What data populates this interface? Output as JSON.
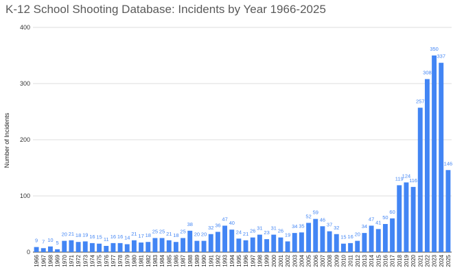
{
  "chart_data": {
    "type": "bar",
    "title": "K-12 School Shooting Database: Incidents by Year 1966-2025",
    "xlabel": "",
    "ylabel": "Number of Incidents",
    "ylim": [
      0,
      400
    ],
    "yticks": [
      0,
      100,
      200,
      300,
      400
    ],
    "grid": true,
    "legend": "none",
    "bar_color": "#4285f4",
    "label_color": "#4285f4",
    "categories": [
      "1966",
      "1967",
      "1968",
      "1969",
      "1970",
      "1971",
      "1972",
      "1973",
      "1974",
      "1975",
      "1976",
      "1977",
      "1978",
      "1979",
      "1980",
      "1981",
      "1982",
      "1983",
      "1984",
      "1985",
      "1986",
      "1987",
      "1988",
      "1989",
      "1990",
      "1991",
      "1992",
      "1993",
      "1994",
      "1995",
      "1996",
      "1997",
      "1998",
      "1999",
      "2000",
      "2001",
      "2002",
      "2003",
      "2004",
      "2005",
      "2006",
      "2007",
      "2008",
      "2009",
      "2010",
      "2011",
      "2012",
      "2013",
      "2014",
      "2015",
      "2016",
      "2017",
      "2018",
      "2019",
      "2020",
      "2021",
      "2022",
      "2023",
      "2024",
      "2025"
    ],
    "values": [
      9,
      7,
      10,
      5,
      20,
      21,
      18,
      19,
      16,
      15,
      11,
      16,
      16,
      14,
      21,
      17,
      18,
      25,
      25,
      21,
      18,
      25,
      38,
      20,
      20,
      32,
      36,
      47,
      40,
      24,
      21,
      26,
      31,
      23,
      31,
      26,
      19,
      34,
      35,
      52,
      59,
      46,
      37,
      32,
      15,
      16,
      20,
      34,
      47,
      41,
      50,
      60,
      119,
      124,
      116,
      257,
      308,
      350,
      337,
      146
    ]
  }
}
